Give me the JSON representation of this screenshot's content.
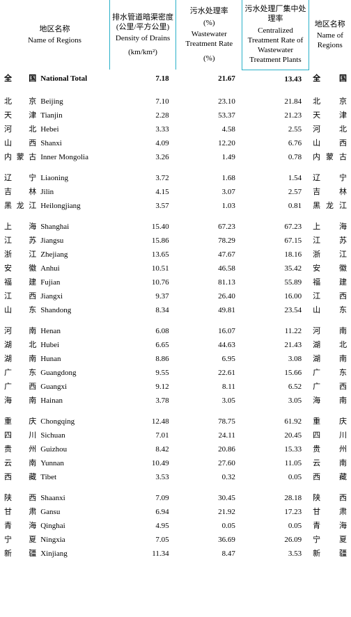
{
  "headers": {
    "region_left": {
      "cn": "地区名称",
      "en": "Name of Regions"
    },
    "density": {
      "cn": "排水管道暗渠密度 (公里/平方公里)",
      "en": "Density of Drains",
      "unit": "(km/km²)"
    },
    "wastewater": {
      "cn": "污水处理率",
      "cn2": "(%)",
      "en": "Wastewater Treatment Rate",
      "unit": "(%)"
    },
    "centralized": {
      "cn": "污水处理厂集中处理率",
      "en": "Centralized Treatment Rate of Wastewater Treatment Plants"
    },
    "region_right": {
      "cn": "地区名称",
      "en": "Name of Regions"
    }
  },
  "groups": [
    {
      "rows": [
        {
          "cn": "全　国",
          "en": "National Total",
          "v1": "7.18",
          "v2": "21.67",
          "v3": "13.43",
          "cn2": "全　国",
          "bold": true
        }
      ]
    },
    {
      "rows": [
        {
          "cn": "北　京",
          "en": "Beijing",
          "v1": "7.10",
          "v2": "23.10",
          "v3": "21.84",
          "cn2": "北　京"
        },
        {
          "cn": "天　津",
          "en": "Tianjin",
          "v1": "2.28",
          "v2": "53.37",
          "v3": "21.23",
          "cn2": "天　津"
        },
        {
          "cn": "河　北",
          "en": "Hebei",
          "v1": "3.33",
          "v2": "4.58",
          "v3": "2.55",
          "cn2": "河　北"
        },
        {
          "cn": "山　西",
          "en": "Shanxi",
          "v1": "4.09",
          "v2": "12.20",
          "v3": "6.76",
          "cn2": "山　西"
        },
        {
          "cn": "内蒙古",
          "en": "Inner Mongolia",
          "v1": "3.26",
          "v2": "1.49",
          "v3": "0.78",
          "cn2": "内蒙古"
        }
      ]
    },
    {
      "rows": [
        {
          "cn": "辽　宁",
          "en": "Liaoning",
          "v1": "3.72",
          "v2": "1.68",
          "v3": "1.54",
          "cn2": "辽　宁"
        },
        {
          "cn": "吉　林",
          "en": "Jilin",
          "v1": "4.15",
          "v2": "3.07",
          "v3": "2.57",
          "cn2": "吉　林"
        },
        {
          "cn": "黑龙江",
          "en": "Heilongjiang",
          "v1": "3.57",
          "v2": "1.03",
          "v3": "0.81",
          "cn2": "黑龙江"
        }
      ]
    },
    {
      "rows": [
        {
          "cn": "上　海",
          "en": "Shanghai",
          "v1": "15.40",
          "v2": "67.23",
          "v3": "67.23",
          "cn2": "上　海"
        },
        {
          "cn": "江　苏",
          "en": "Jiangsu",
          "v1": "15.86",
          "v2": "78.29",
          "v3": "67.15",
          "cn2": "江　苏"
        },
        {
          "cn": "浙　江",
          "en": "Zhejiang",
          "v1": "13.65",
          "v2": "47.67",
          "v3": "18.16",
          "cn2": "浙　江"
        },
        {
          "cn": "安　徽",
          "en": "Anhui",
          "v1": "10.51",
          "v2": "46.58",
          "v3": "35.42",
          "cn2": "安　徽"
        },
        {
          "cn": "福　建",
          "en": "Fujian",
          "v1": "10.76",
          "v2": "81.13",
          "v3": "55.89",
          "cn2": "福　建"
        },
        {
          "cn": "江　西",
          "en": "Jiangxi",
          "v1": "9.37",
          "v2": "26.40",
          "v3": "16.00",
          "cn2": "江　西"
        },
        {
          "cn": "山　东",
          "en": "Shandong",
          "v1": "8.34",
          "v2": "49.81",
          "v3": "23.54",
          "cn2": "山　东"
        }
      ]
    },
    {
      "rows": [
        {
          "cn": "河　南",
          "en": "Henan",
          "v1": "6.08",
          "v2": "16.07",
          "v3": "11.22",
          "cn2": "河　南"
        },
        {
          "cn": "湖　北",
          "en": "Hubei",
          "v1": "6.65",
          "v2": "44.63",
          "v3": "21.43",
          "cn2": "湖　北"
        },
        {
          "cn": "湖　南",
          "en": "Hunan",
          "v1": "8.86",
          "v2": "6.95",
          "v3": "3.08",
          "cn2": "湖　南"
        },
        {
          "cn": "广　东",
          "en": "Guangdong",
          "v1": "9.55",
          "v2": "22.61",
          "v3": "15.66",
          "cn2": "广　东"
        },
        {
          "cn": "广　西",
          "en": "Guangxi",
          "v1": "9.12",
          "v2": "8.11",
          "v3": "6.52",
          "cn2": "广　西"
        },
        {
          "cn": "海　南",
          "en": "Hainan",
          "v1": "3.78",
          "v2": "3.05",
          "v3": "3.05",
          "cn2": "海　南"
        }
      ]
    },
    {
      "rows": [
        {
          "cn": "重　庆",
          "en": "Chongqing",
          "v1": "12.48",
          "v2": "78.75",
          "v3": "61.92",
          "cn2": "重　庆"
        },
        {
          "cn": "四　川",
          "en": "Sichuan",
          "v1": "7.01",
          "v2": "24.11",
          "v3": "20.45",
          "cn2": "四　川"
        },
        {
          "cn": "贵　州",
          "en": "Guizhou",
          "v1": "8.42",
          "v2": "20.86",
          "v3": "15.33",
          "cn2": "贵　州"
        },
        {
          "cn": "云　南",
          "en": "Yunnan",
          "v1": "10.49",
          "v2": "27.60",
          "v3": "11.05",
          "cn2": "云　南"
        },
        {
          "cn": "西　藏",
          "en": "Tibet",
          "v1": "3.53",
          "v2": "0.32",
          "v3": "0.05",
          "cn2": "西　藏"
        }
      ]
    },
    {
      "rows": [
        {
          "cn": "陕　西",
          "en": "Shaanxi",
          "v1": "7.09",
          "v2": "30.45",
          "v3": "28.18",
          "cn2": "陕　西"
        },
        {
          "cn": "甘　肃",
          "en": "Gansu",
          "v1": "6.94",
          "v2": "21.92",
          "v3": "17.23",
          "cn2": "甘　肃"
        },
        {
          "cn": "青　海",
          "en": "Qinghai",
          "v1": "4.95",
          "v2": "0.05",
          "v3": "0.05",
          "cn2": "青　海"
        },
        {
          "cn": "宁　夏",
          "en": "Ningxia",
          "v1": "7.05",
          "v2": "36.69",
          "v3": "26.09",
          "cn2": "宁　夏"
        },
        {
          "cn": "新　疆",
          "en": "Xinjiang",
          "v1": "11.34",
          "v2": "8.47",
          "v3": "3.53",
          "cn2": "新　疆"
        }
      ]
    }
  ]
}
